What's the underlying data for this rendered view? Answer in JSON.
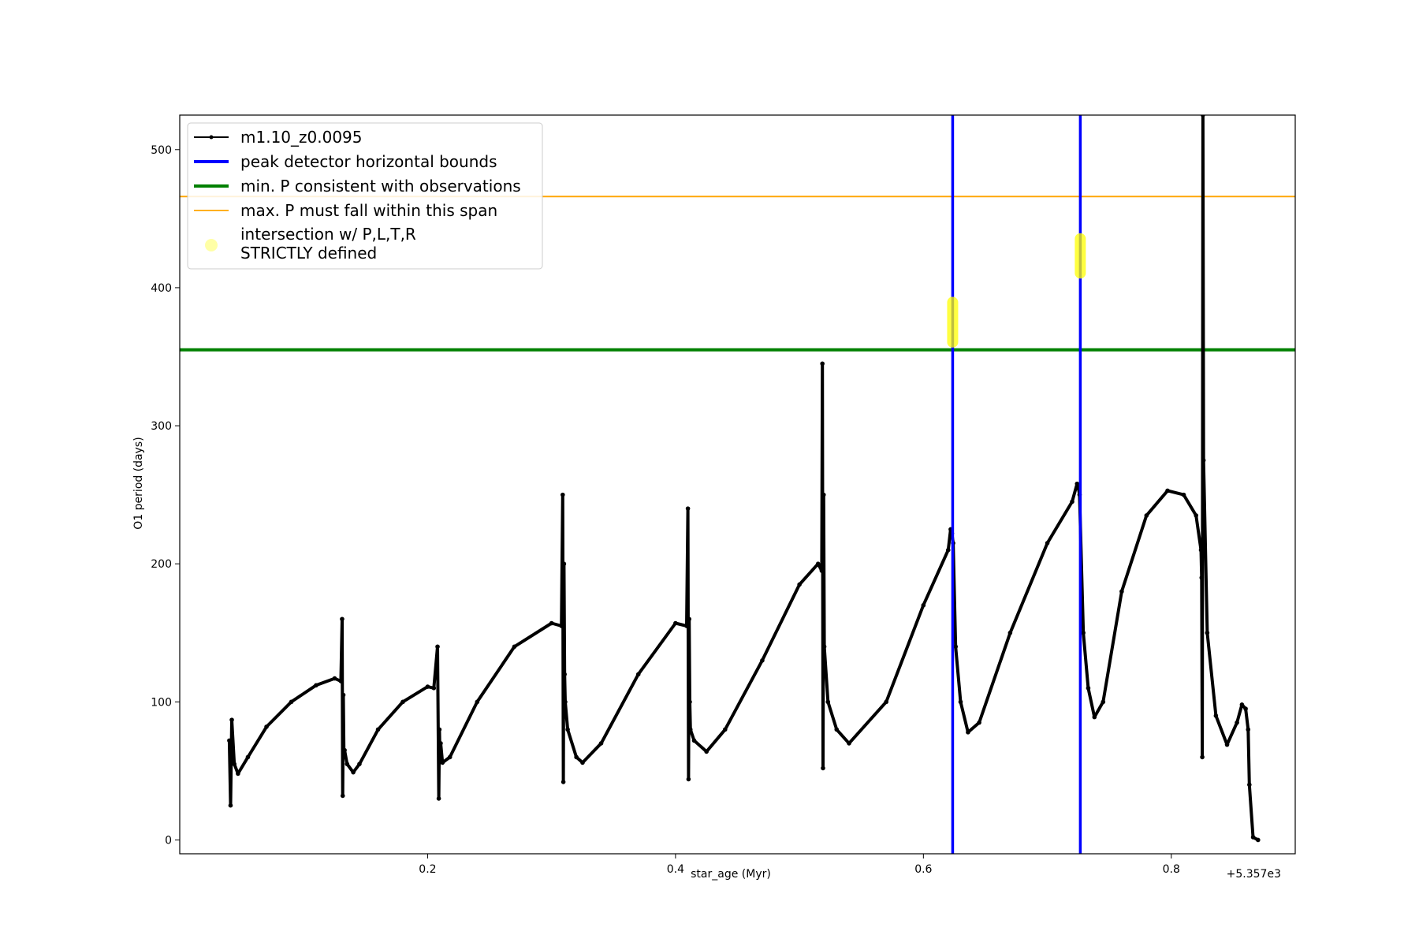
{
  "chart_data": {
    "type": "line",
    "xlabel": "star_age (Myr)",
    "ylabel": "O1 period (days)",
    "x_offset_label": "+5.357e3",
    "x_offset": 5357,
    "xlim": [
      5357.0,
      5357.9
    ],
    "ylim": [
      -10,
      525
    ],
    "x_ticks": [
      0.2,
      0.4,
      0.6,
      0.8
    ],
    "x_tick_labels": [
      "0.2",
      "0.4",
      "0.6",
      "0.8"
    ],
    "y_ticks": [
      0,
      100,
      200,
      300,
      400,
      500
    ],
    "y_tick_labels": [
      "0",
      "100",
      "200",
      "300",
      "400",
      "500"
    ],
    "grid": false,
    "legend_position": "upper-left",
    "series": [
      {
        "name": "m1.10_z0.0095",
        "color": "#000000",
        "style": "line-with-markers",
        "x": [
          5357.04,
          5357.041,
          5357.042,
          5357.044,
          5357.047,
          5357.055,
          5357.07,
          5357.09,
          5357.11,
          5357.125,
          5357.13,
          5357.131,
          5357.1315,
          5357.132,
          5357.1325,
          5357.133,
          5357.135,
          5357.14,
          5357.145,
          5357.16,
          5357.18,
          5357.2,
          5357.205,
          5357.208,
          5357.209,
          5357.2095,
          5357.21,
          5357.2105,
          5357.212,
          5357.218,
          5357.24,
          5357.27,
          5357.3,
          5357.308,
          5357.309,
          5357.3095,
          5357.31,
          5357.3105,
          5357.311,
          5357.313,
          5357.32,
          5357.325,
          5357.34,
          5357.37,
          5357.4,
          5357.409,
          5357.41,
          5357.4105,
          5357.411,
          5357.4115,
          5357.412,
          5357.415,
          5357.425,
          5357.44,
          5357.47,
          5357.5,
          5357.515,
          5357.518,
          5357.5185,
          5357.519,
          5357.5195,
          5357.52,
          5357.523,
          5357.53,
          5357.54,
          5357.57,
          5357.6,
          5357.62,
          5357.622,
          5357.623,
          5357.624,
          5357.626,
          5357.63,
          5357.636,
          5357.645,
          5357.67,
          5357.7,
          5357.72,
          5357.724,
          5357.725,
          5357.726,
          5357.729,
          5357.733,
          5357.738,
          5357.745,
          5357.76,
          5357.78,
          5357.797,
          5357.81,
          5357.82,
          5357.824,
          5357.8245,
          5357.825,
          5357.8255,
          5357.826,
          5357.829,
          5357.836,
          5357.845,
          5357.853,
          5357.857,
          5357.86,
          5357.862,
          5357.863,
          5357.866,
          5357.87
        ],
        "y": [
          72,
          25,
          87,
          55,
          48,
          60,
          82,
          100,
          112,
          117,
          115,
          160,
          32,
          105,
          60,
          65,
          55,
          49,
          55,
          80,
          100,
          111,
          110,
          140,
          30,
          80,
          58,
          70,
          56,
          60,
          100,
          140,
          157,
          155,
          250,
          42,
          200,
          120,
          100,
          80,
          60,
          56,
          70,
          120,
          157,
          155,
          240,
          44,
          160,
          100,
          80,
          72,
          64,
          80,
          130,
          185,
          200,
          195,
          345,
          52,
          250,
          140,
          100,
          80,
          70,
          100,
          170,
          210,
          225,
          222,
          215,
          140,
          100,
          78,
          85,
          150,
          215,
          245,
          258,
          255,
          250,
          150,
          110,
          89,
          100,
          180,
          235,
          253,
          250,
          235,
          210,
          190,
          60,
          525,
          275,
          150,
          90,
          69,
          85,
          98,
          95,
          80,
          40,
          2,
          0
        ]
      }
    ],
    "vlines": {
      "name": "peak detector horizontal bounds",
      "color": "#0000ff",
      "x": [
        5357.6236,
        5357.7266
      ]
    },
    "hlines": [
      {
        "name": "min. P consistent with observations",
        "color": "#008000",
        "y": 355
      },
      {
        "name": "max. P must fall within this span",
        "color": "#ffa500",
        "y": 466
      }
    ],
    "highlights": {
      "name": "intersection w/ P,L,T,R\nSTRICTLY defined",
      "color": "#ffff00",
      "points": [
        {
          "x": 5357.6236,
          "y_range": [
            360,
            390
          ]
        },
        {
          "x": 5357.7266,
          "y_range": [
            410,
            436
          ]
        }
      ]
    },
    "legend": [
      {
        "label": "m1.10_z0.0095",
        "kind": "line-marker",
        "color": "#000000"
      },
      {
        "label": "peak detector horizontal bounds",
        "kind": "thick-line",
        "color": "#0000ff"
      },
      {
        "label": "min. P consistent with observations",
        "kind": "thick-line",
        "color": "#008000"
      },
      {
        "label": "max. P must fall within this span",
        "kind": "thin-line",
        "color": "#ffa500"
      },
      {
        "label": "intersection w/ P,L,T,R",
        "label_line2": "STRICTLY defined",
        "kind": "dot",
        "color": "#ffff00"
      }
    ]
  }
}
